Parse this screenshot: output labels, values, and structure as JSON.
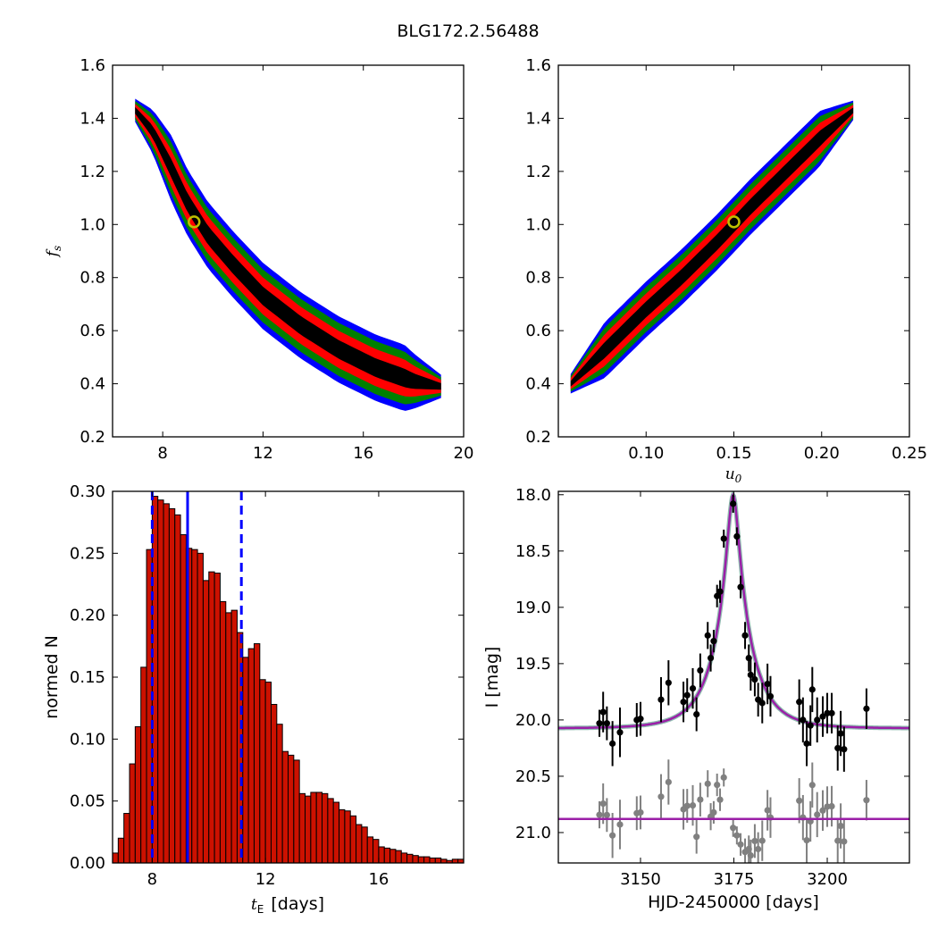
{
  "figure": {
    "title": "BLG172.2.56488"
  },
  "colors": {
    "level1": "#000000",
    "level2": "#ff0000",
    "level3": "#008000",
    "level4": "#0000ff",
    "marker_edge": "#bfbf00",
    "hist_fill": "#cc1100",
    "vline": "#0000ff",
    "model": "#9b1fa8",
    "data_main": "#000000",
    "data_resid": "#808080"
  },
  "chart_data": [
    {
      "id": "fs_vs_tE",
      "type": "heatmap",
      "title": "",
      "xlabel": "",
      "ylabel": "f_s",
      "xlim": [
        6,
        20
      ],
      "ylim": [
        0.2,
        1.6
      ],
      "xticks": [
        8,
        12,
        16,
        20
      ],
      "yticks": [
        0.2,
        0.4,
        0.6,
        0.8,
        1.0,
        1.2,
        1.4,
        1.6
      ],
      "xticklabels": [
        "8",
        "12",
        "16",
        "20"
      ],
      "yticklabels": [
        "0.2",
        "0.4",
        "0.6",
        "0.8",
        "1.0",
        "1.2",
        "1.4",
        "1.6"
      ],
      "best_fit": {
        "x": 9.25,
        "y": 1.01
      },
      "ridge": [
        [
          6.9,
          1.43
        ],
        [
          7.6,
          1.35
        ],
        [
          8.3,
          1.22
        ],
        [
          9.0,
          1.08
        ],
        [
          9.8,
          0.96
        ],
        [
          10.8,
          0.85
        ],
        [
          12.0,
          0.73
        ],
        [
          13.5,
          0.62
        ],
        [
          15.0,
          0.53
        ],
        [
          16.5,
          0.46
        ],
        [
          18.0,
          0.41
        ],
        [
          19.1,
          0.39
        ]
      ],
      "contour_halfwidths_y": [
        0.035,
        0.07,
        0.1,
        0.125
      ],
      "contour_levels": [
        "black",
        "red",
        "green",
        "blue"
      ]
    },
    {
      "id": "fs_vs_u0",
      "type": "heatmap",
      "title": "",
      "xlabel": "u_0",
      "ylabel": "",
      "xlim": [
        0.05,
        0.25
      ],
      "ylim": [
        0.2,
        1.6
      ],
      "xticks": [
        0.1,
        0.15,
        0.2,
        0.25
      ],
      "yticks": [
        0.2,
        0.4,
        0.6,
        0.8,
        1.0,
        1.2,
        1.4,
        1.6
      ],
      "xticklabels": [
        "0.10",
        "0.15",
        "0.20",
        "0.25"
      ],
      "yticklabels": [
        "0.2",
        "0.4",
        "0.6",
        "0.8",
        "1.0",
        "1.2",
        "1.4",
        "1.6"
      ],
      "best_fit": {
        "x": 0.15,
        "y": 1.01
      },
      "ridge": [
        [
          0.057,
          0.4
        ],
        [
          0.08,
          0.55
        ],
        [
          0.1,
          0.68
        ],
        [
          0.12,
          0.8
        ],
        [
          0.14,
          0.93
        ],
        [
          0.16,
          1.07
        ],
        [
          0.18,
          1.2
        ],
        [
          0.2,
          1.33
        ],
        [
          0.218,
          1.43
        ]
      ],
      "contour_halfwidths_y": [
        0.03,
        0.06,
        0.085,
        0.105
      ],
      "contour_levels": [
        "black",
        "red",
        "green",
        "blue"
      ]
    },
    {
      "id": "tE_histogram",
      "type": "bar",
      "title": "",
      "xlabel": "t_E",
      "xlabel_suffix": "[days]",
      "ylabel": "normed N",
      "xlim": [
        6.6,
        19.0
      ],
      "ylim": [
        0,
        0.3
      ],
      "xticks": [
        8,
        12,
        16
      ],
      "yticks": [
        0.0,
        0.05,
        0.1,
        0.15,
        0.2,
        0.25,
        0.3
      ],
      "xticklabels": [
        "8",
        "12",
        "16"
      ],
      "yticklabels": [
        "0.00",
        "0.05",
        "0.10",
        "0.15",
        "0.20",
        "0.25",
        "0.30"
      ],
      "bin_start": 6.6,
      "bin_width": 0.2,
      "values": [
        0.008,
        0.02,
        0.04,
        0.08,
        0.11,
        0.158,
        0.253,
        0.296,
        0.293,
        0.29,
        0.286,
        0.281,
        0.265,
        0.254,
        0.253,
        0.25,
        0.228,
        0.235,
        0.234,
        0.211,
        0.202,
        0.204,
        0.186,
        0.166,
        0.173,
        0.177,
        0.148,
        0.146,
        0.128,
        0.112,
        0.09,
        0.087,
        0.083,
        0.056,
        0.054,
        0.057,
        0.057,
        0.056,
        0.052,
        0.049,
        0.043,
        0.042,
        0.038,
        0.031,
        0.029,
        0.021,
        0.019,
        0.013,
        0.012,
        0.011,
        0.01,
        0.008,
        0.007,
        0.006,
        0.005,
        0.005,
        0.004,
        0.004,
        0.003,
        0.002,
        0.003,
        0.003,
        0.001,
        0.003,
        0.004,
        0.002,
        0.003,
        0.001,
        0.001,
        0.001,
        0.0,
        0.001,
        0.0,
        0.0,
        0.0,
        0.0,
        0.0,
        0.0,
        0.0,
        0.0,
        0.0,
        0.0
      ],
      "median": 9.25,
      "lower": 8.0,
      "upper": 11.15
    },
    {
      "id": "lightcurve",
      "type": "scatter",
      "title": "",
      "xlabel": "HJD-2450000 [days]",
      "ylabel": "I [mag]",
      "xlim": [
        3128,
        3222
      ],
      "ylim": [
        21.27,
        17.97
      ],
      "xticks": [
        3150,
        3175,
        3200
      ],
      "yticks": [
        18.0,
        18.5,
        19.0,
        19.5,
        20.0,
        20.5,
        21.0
      ],
      "xticklabels": [
        "3150",
        "3175",
        "3200"
      ],
      "yticklabels": [
        "18.0",
        "18.5",
        "19.0",
        "19.5",
        "20.0",
        "20.5",
        "21.0"
      ],
      "model": {
        "t0": 3174.8,
        "tE": 9.25,
        "u0": 0.15,
        "baseline": 20.07,
        "resid_offset": 20.88
      },
      "points": [
        [
          3139,
          20.03,
          0.12
        ],
        [
          3140,
          19.93,
          0.18
        ],
        [
          3141,
          20.03,
          0.15
        ],
        [
          3142.5,
          20.21,
          0.2
        ],
        [
          3144.5,
          20.11,
          0.22
        ],
        [
          3149,
          20.0,
          0.15
        ],
        [
          3150,
          19.99,
          0.15
        ],
        [
          3155.5,
          19.82,
          0.2
        ],
        [
          3157.5,
          19.67,
          0.2
        ],
        [
          3161.5,
          19.84,
          0.18
        ],
        [
          3162.5,
          19.78,
          0.15
        ],
        [
          3164,
          19.72,
          0.18
        ],
        [
          3165,
          19.95,
          0.15
        ],
        [
          3166,
          19.56,
          0.15
        ],
        [
          3168,
          19.25,
          0.12
        ],
        [
          3168.8,
          19.45,
          0.12
        ],
        [
          3169.6,
          19.3,
          0.1
        ],
        [
          3170.5,
          18.9,
          0.1
        ],
        [
          3171.3,
          18.86,
          0.1
        ],
        [
          3172.3,
          18.39,
          0.08
        ],
        [
          3174.8,
          18.08,
          0.08
        ],
        [
          3175.8,
          18.37,
          0.08
        ],
        [
          3176.8,
          18.82,
          0.1
        ],
        [
          3178,
          19.25,
          0.12
        ],
        [
          3179,
          19.45,
          0.12
        ],
        [
          3179.5,
          19.6,
          0.14
        ],
        [
          3180.6,
          19.64,
          0.15
        ],
        [
          3181.5,
          19.82,
          0.15
        ],
        [
          3182.6,
          19.85,
          0.18
        ],
        [
          3184,
          19.68,
          0.18
        ],
        [
          3184.8,
          19.79,
          0.18
        ],
        [
          3192.5,
          19.84,
          0.2
        ],
        [
          3193.5,
          20.0,
          0.2
        ],
        [
          3194.5,
          20.21,
          0.2
        ],
        [
          3195.5,
          20.05,
          0.18
        ],
        [
          3196,
          19.73,
          0.2
        ],
        [
          3197.3,
          20.0,
          0.2
        ],
        [
          3198.8,
          19.97,
          0.18
        ],
        [
          3200,
          19.94,
          0.18
        ],
        [
          3201.2,
          19.94,
          0.18
        ],
        [
          3202.8,
          20.25,
          0.2
        ],
        [
          3203.6,
          20.12,
          0.2
        ],
        [
          3204.5,
          20.26,
          0.2
        ],
        [
          3210.5,
          19.9,
          0.18
        ]
      ]
    }
  ]
}
